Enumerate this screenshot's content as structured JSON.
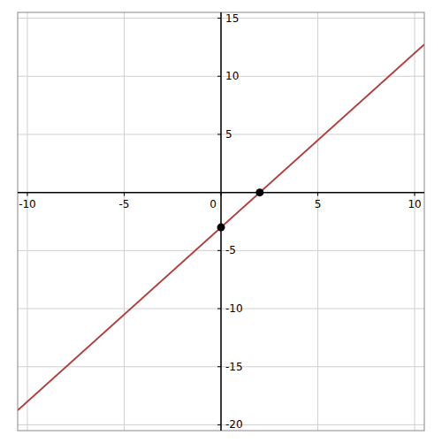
{
  "chart_data": {
    "type": "line",
    "series": [
      {
        "type": "line",
        "color": "#b34040",
        "x": [
          -10.5,
          10.5
        ],
        "values": [
          -18.75,
          12.75
        ]
      },
      {
        "type": "scatter",
        "color": "#000000",
        "x": [
          2,
          0
        ],
        "values": [
          0,
          -3
        ]
      }
    ],
    "xlim": [
      -10.5,
      10.5
    ],
    "ylim": [
      -20.5,
      15.5
    ],
    "xticks": [
      -10,
      -5,
      0,
      5,
      10
    ],
    "yticks": [
      -20,
      -15,
      -10,
      -5,
      5,
      10,
      15
    ],
    "grid": true
  }
}
